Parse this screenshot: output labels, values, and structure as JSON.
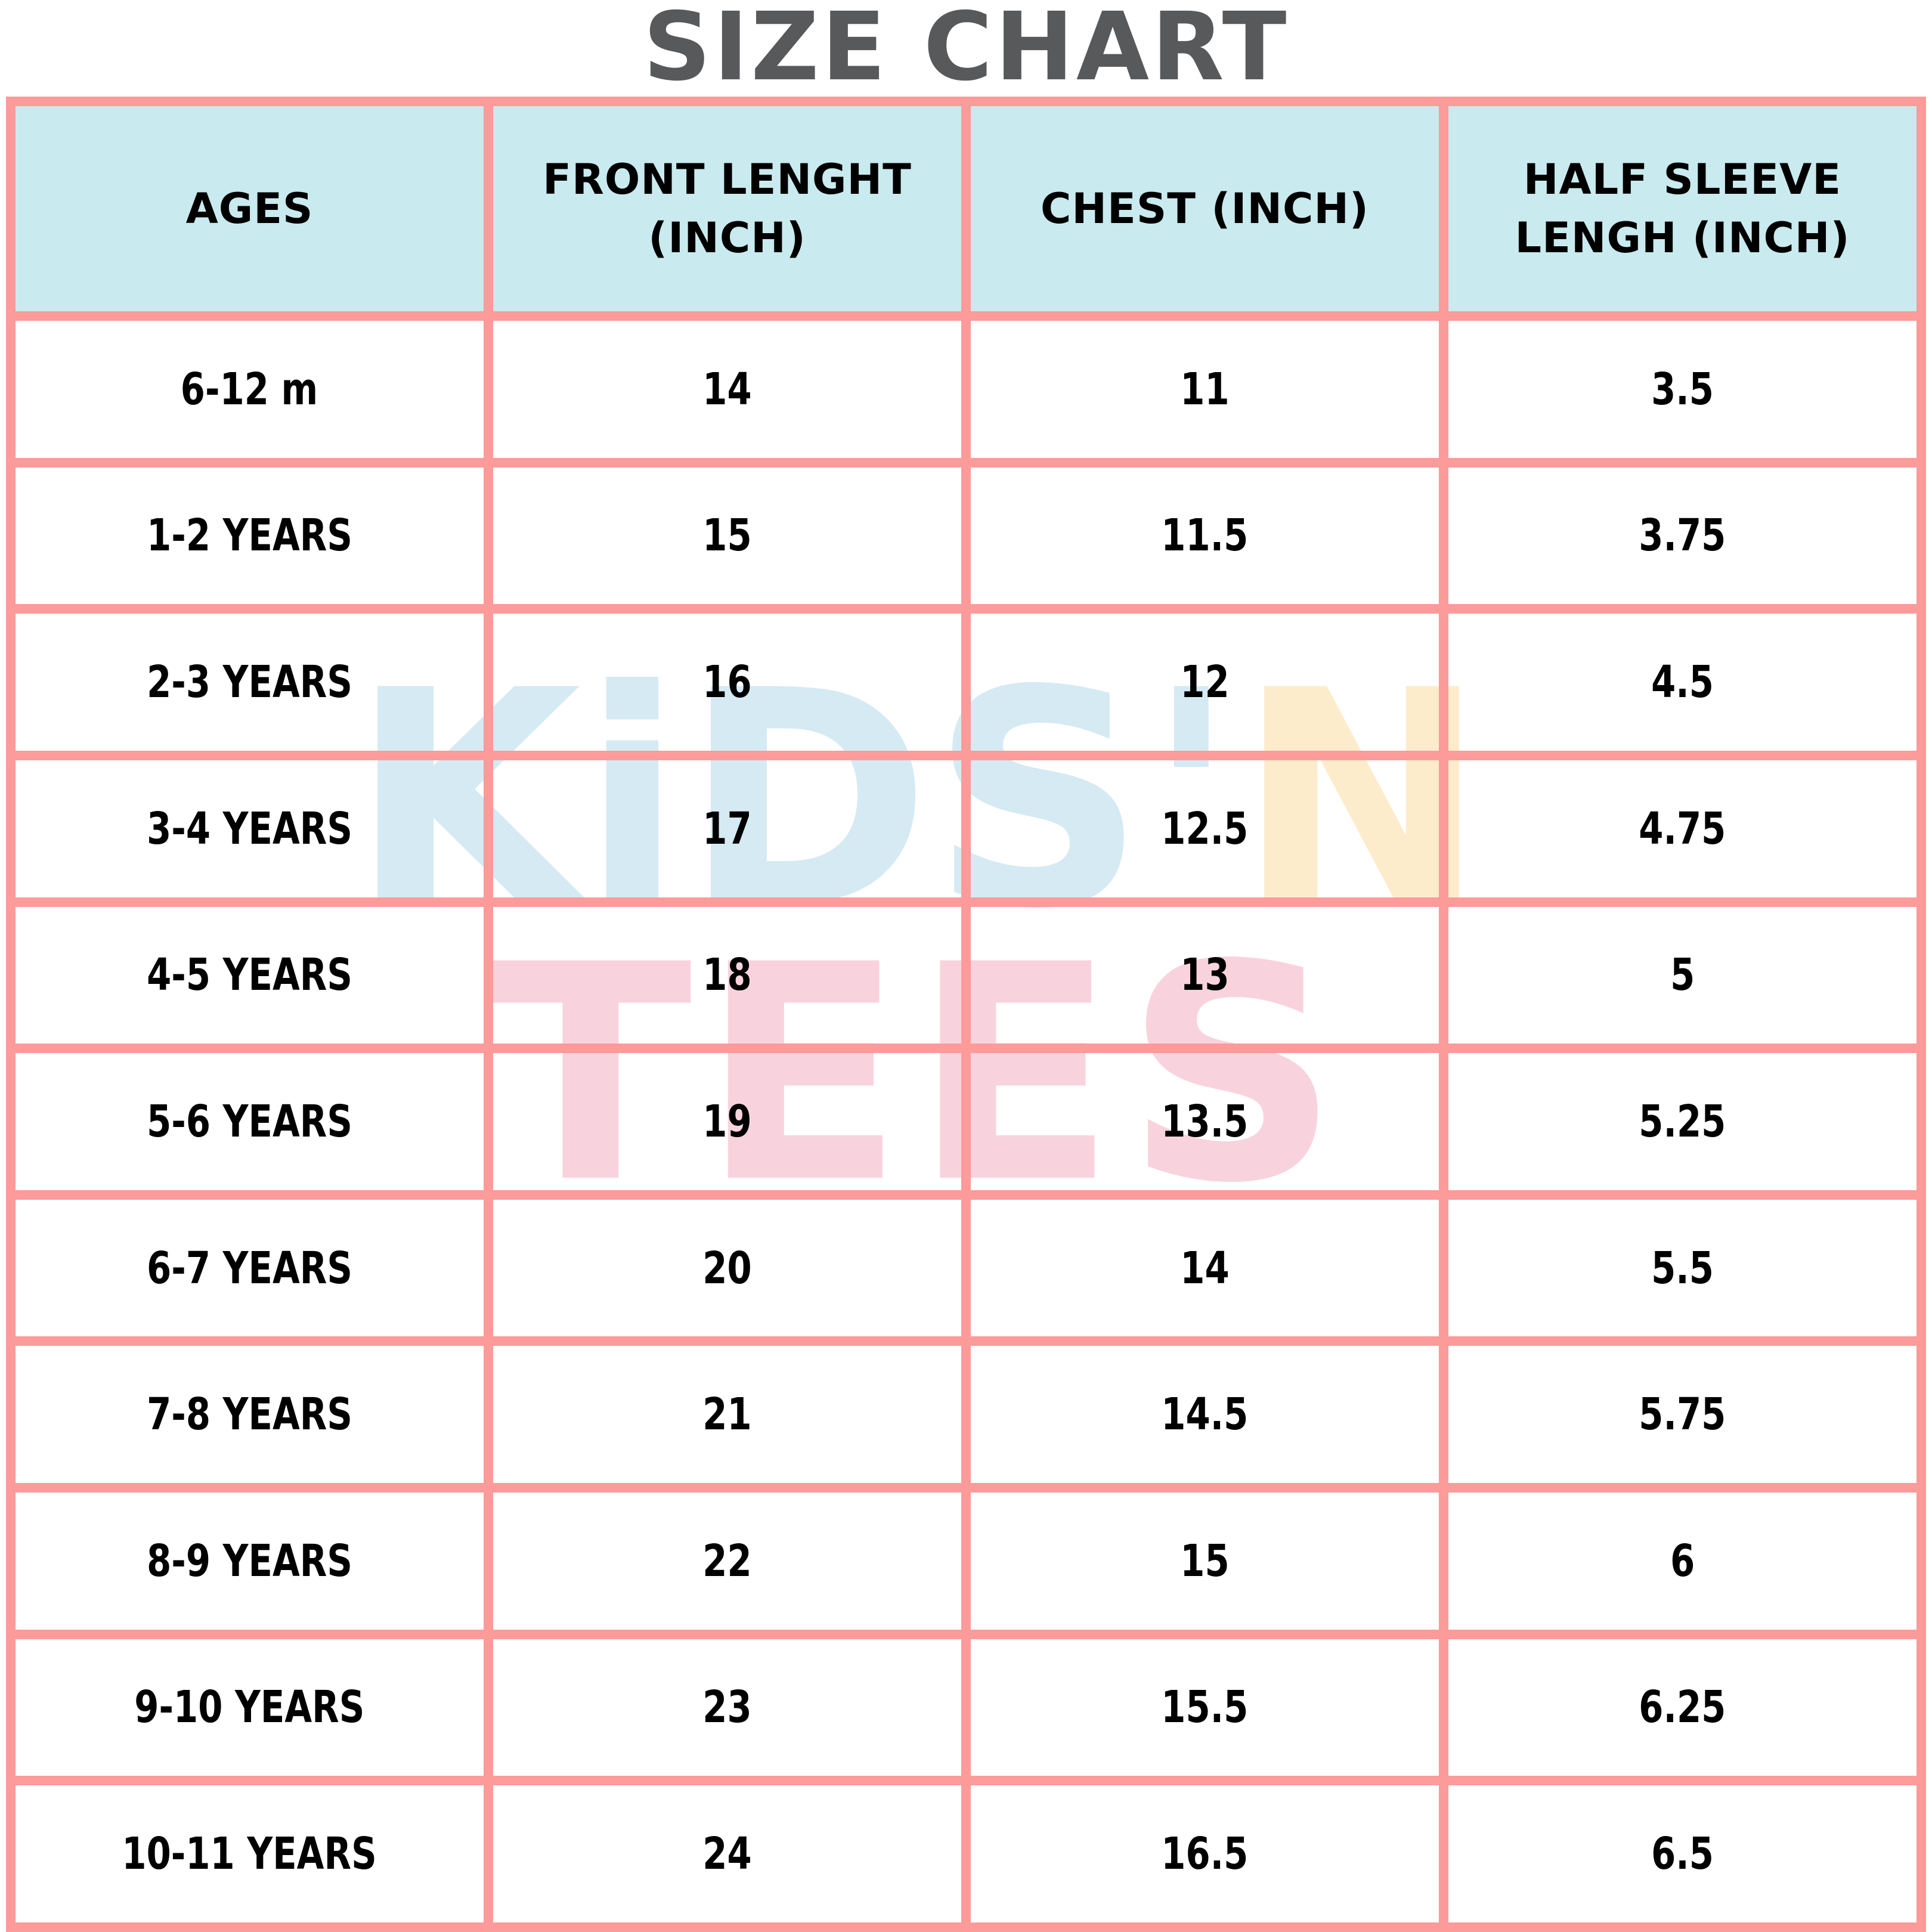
{
  "title": "SIZE CHART",
  "chart_data": {
    "type": "table",
    "title": "SIZE CHART",
    "columns": [
      "AGES",
      "FRONT LENGHT (INCH)",
      "CHEST (INCH)",
      "HALF SLEEVE LENGH (INCH)"
    ],
    "rows": [
      [
        "6-12 m",
        14,
        11,
        3.5
      ],
      [
        "1-2 YEARS",
        15,
        11.5,
        3.75
      ],
      [
        "2-3 YEARS",
        16,
        12,
        4.5
      ],
      [
        "3-4 YEARS",
        17,
        12.5,
        4.75
      ],
      [
        "4-5 YEARS",
        18,
        13,
        5
      ],
      [
        "5-6 YEARS",
        19,
        13.5,
        5.25
      ],
      [
        "6-7 YEARS",
        20,
        14,
        5.5
      ],
      [
        "7-8 YEARS",
        21,
        14.5,
        5.75
      ],
      [
        "8-9 YEARS",
        22,
        15,
        6
      ],
      [
        "9-10 YEARS",
        23,
        15.5,
        6.25
      ],
      [
        "10-11 YEARS",
        24,
        16.5,
        6.5
      ]
    ]
  },
  "watermark": {
    "kids": "KiDS'",
    "n": "N",
    "tees": "TEES"
  },
  "colors": {
    "border_pink": "#fd9a9a",
    "header_blue": "#c9eaee",
    "title_gray": "#58595b",
    "watermark_blue": "#d5eaf3",
    "watermark_orange": "#fdeccb",
    "watermark_pink": "#f8d3de",
    "cell_text": "#000000"
  }
}
